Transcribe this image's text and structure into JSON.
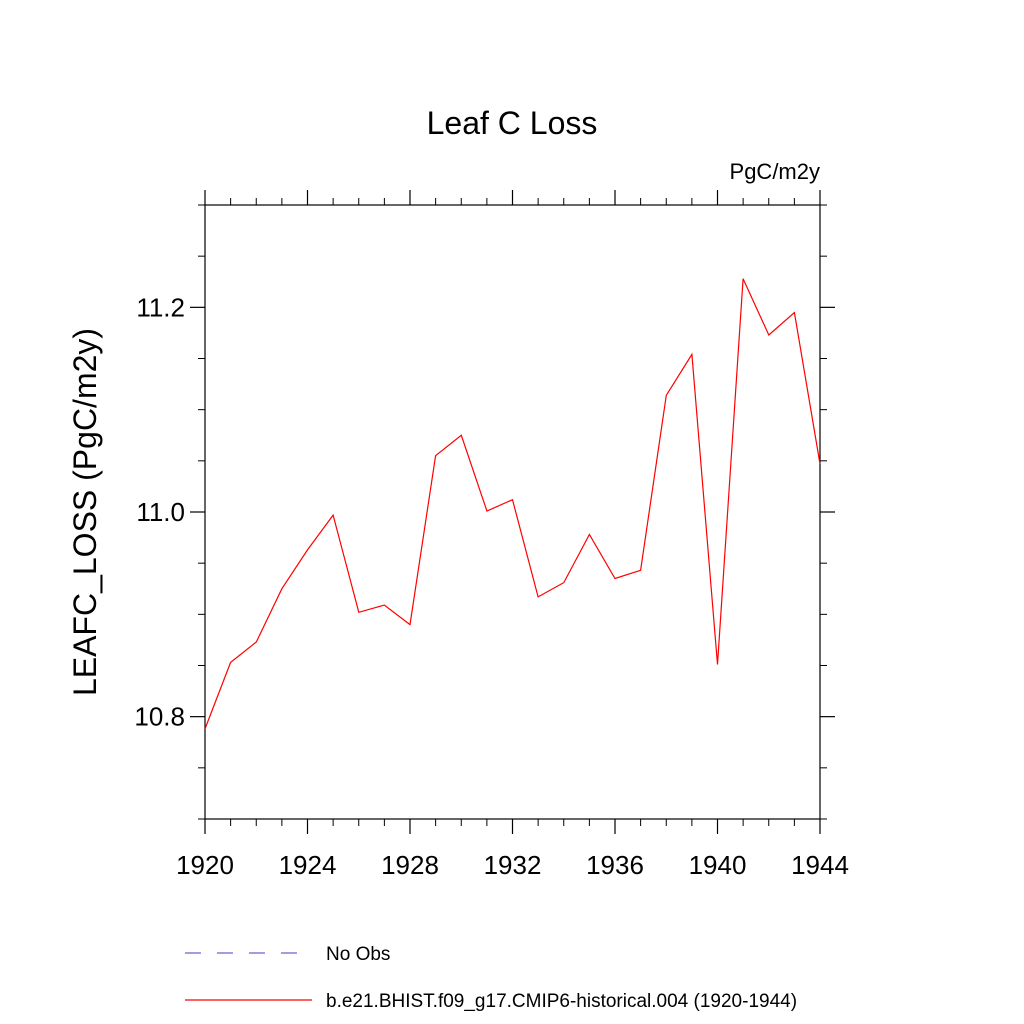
{
  "chart_data": {
    "type": "line",
    "title": "Leaf C Loss",
    "units": "PgC/m2y",
    "ylabel": "LEAFC_LOSS  (PgC/m2y)",
    "xlabel": "",
    "xlim": [
      1920,
      1944
    ],
    "ylim": [
      10.7,
      11.3
    ],
    "x_ticks": [
      1920,
      1924,
      1928,
      1932,
      1936,
      1940,
      1944
    ],
    "x_tick_labels": [
      "1920",
      "1924",
      "1928",
      "1932",
      "1936",
      "1940",
      "1944"
    ],
    "y_ticks": [
      10.8,
      11.0,
      11.2
    ],
    "y_tick_labels": [
      "10.8",
      "11.0",
      "11.2"
    ],
    "grid": false,
    "legend_position": "bottom",
    "series": [
      {
        "name": "b.e21.BHIST.f09_g17.CMIP6-historical.004 (1920-1944)",
        "color": "#ff0000",
        "style": "solid",
        "x": [
          1920,
          1921,
          1922,
          1923,
          1924,
          1925,
          1926,
          1927,
          1928,
          1929,
          1930,
          1931,
          1932,
          1933,
          1934,
          1935,
          1936,
          1937,
          1938,
          1939,
          1940,
          1941,
          1942,
          1943,
          1944
        ],
        "values": [
          10.788,
          10.853,
          10.873,
          10.925,
          10.963,
          10.997,
          10.902,
          10.909,
          10.89,
          11.055,
          11.075,
          11.001,
          11.012,
          10.917,
          10.931,
          10.978,
          10.935,
          10.943,
          11.114,
          11.154,
          10.851,
          11.228,
          11.173,
          11.195,
          11.047
        ]
      }
    ],
    "legend": [
      {
        "label": "No Obs",
        "color": "#6666cc",
        "style": "dashed"
      },
      {
        "label": "b.e21.BHIST.f09_g17.CMIP6-historical.004 (1920-1944)",
        "color": "#ff0000",
        "style": "solid"
      }
    ]
  }
}
